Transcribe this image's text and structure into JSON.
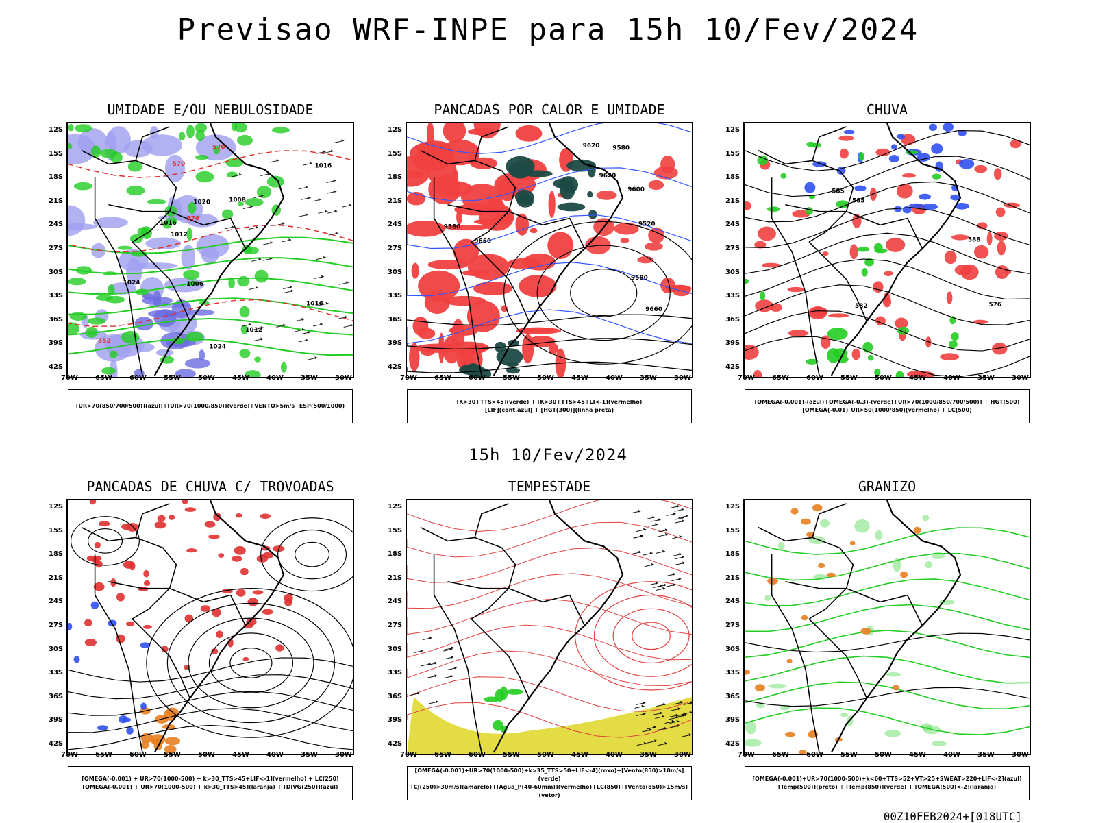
{
  "title": "Previsao WRF-INPE  para 15h 10/Fev/2024",
  "subtitle": "15h 10/Fev/2024",
  "footer": "00Z10FEB2024+[018UTC]",
  "lat_labels": [
    "12S",
    "15S",
    "18S",
    "21S",
    "24S",
    "27S",
    "30S",
    "33S",
    "36S",
    "39S",
    "42S"
  ],
  "lon_labels": [
    "70W",
    "65W",
    "60W",
    "55W",
    "50W",
    "45W",
    "40W",
    "35W",
    "30W"
  ],
  "panels": [
    {
      "title": "UMIDADE E/OU NEBULOSIDADE",
      "legend": [
        "[UR>70(850/700/500)](azul)+[UR>70(1000/850)](verde)+VENTO>5m/s+ESP(500/1000)"
      ],
      "labels": [
        "1006",
        "1008",
        "1012",
        "1012",
        "1016",
        "1016",
        "1016",
        "1020",
        "1024",
        "1024",
        "570",
        "570",
        "576",
        "552"
      ]
    },
    {
      "title": "PANCADAS POR CALOR E UMIDADE",
      "legend": [
        "[K>30+TTS>45](verde) + [K>30+TTS>45+LI<-1](vermelho)",
        "[LIF](cont.azul) + [HGT(300)](linha preta)"
      ],
      "labels": [
        "9580",
        "9580",
        "9620",
        "9660",
        "9620",
        "9660",
        "9580",
        "9600",
        "9520"
      ]
    },
    {
      "title": "CHUVA",
      "legend": [
        "[OMEGA(-0.001)-(azul)+OMEGA(-0.3)-(verde)+UR>70(1000/850/700/500)] + HGT(500)",
        "[OMEGA(-0.01)_UR>50(1000/850)(vermelho) + LC(500)"
      ],
      "labels": [
        "588",
        "585",
        "582",
        "585",
        "576"
      ]
    },
    {
      "title": "PANCADAS DE CHUVA C/ TROVOADAS",
      "legend": [
        "[OMEGA(-0.001) + UR>70(1000-500) + k>30_TTS>45+LIF<-1](vermelho) + LC(250)",
        "[OMEGA(-0.001) + UR>70(1000-500) + k>30_TTS>45](laranja) + [DIVG(250)](azul)"
      ],
      "labels": []
    },
    {
      "title": "TEMPESTADE",
      "legend": [
        "[OMEGA(-0.001)+UR>70(1000-500)+k>35_TTS>50+LIF<-4](roxo)+[Vento(850)>10m/s](verde)",
        "[CJ(250)>30m/s](amarelo)+[Agua_P(40-60mm)](vermelho)+LC(850)+[Vento(850)>15m/s](vetor)"
      ],
      "labels": []
    },
    {
      "title": "GRANIZO",
      "legend": [
        "[OMEGA(-0.001)+UR>70(1000-500)+k<60+TTS>52+VT>25+SWEAT>220+LIF<-2](azul)",
        "[Temp(500)](preto) + [Temp(850)](verde) + [OMEGA(500)<-2](laranja)"
      ],
      "labels": []
    }
  ]
}
